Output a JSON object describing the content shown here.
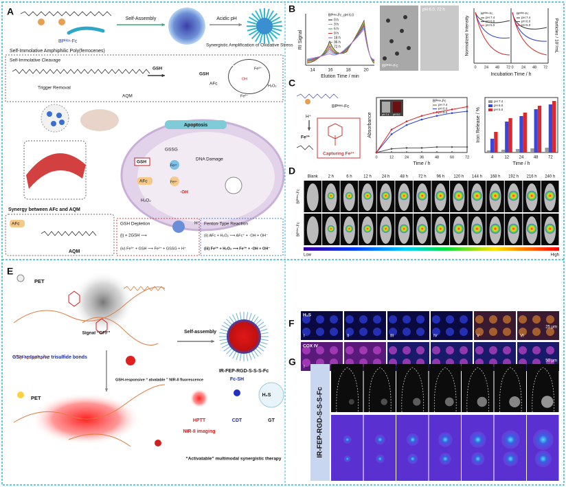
{
  "panel_labels": [
    "A",
    "B",
    "C",
    "D",
    "E",
    "F",
    "G"
  ],
  "panel_a": {
    "bp_label": "BPᴴᵉˣ-Fc",
    "self_assembly": "Self-Assembly",
    "acidic_ph": "Acidic pH",
    "polymer_title": "Self-Immolative Amphiphilic Poly(ferrocenes)",
    "synergy_title": "Synergistic Amplification of Oxidative Stress",
    "cleavage": "Self-Immolative Cleavage",
    "trigger": "Trigger Removal",
    "aqm": "AQM",
    "gsh": "GSH",
    "afc": "AFc",
    "apoptosis": "Apoptosis",
    "gssg": "GSSG",
    "dna_damage": "DNA Damage",
    "fe2": "Fe²⁺",
    "fe3": "Fe³⁺",
    "h2o2": "H₂O₂",
    "oh": "·OH",
    "h_plus": "H⁺",
    "synergy_between": "Synergy between AFc and AQM",
    "gsh_depletion": "GSH Depletion",
    "gsh_r1": "(i)  + 2GSH ⟶",
    "gsh_r4": "(iv) Fe³⁺ + GSH ⟶ Fe²⁺ + GSSG + H⁺",
    "fenton": "Fenton-Type Reaction",
    "fenton_r2": "(ii) AFc + H₂O₂ ⟶ AFc⁺ + ·OH + OH⁻",
    "fenton_r3": "(iii) Fe²⁺ + H₂O₂ ⟶ Fe³⁺ + ·OH + OH⁻"
  },
  "panel_b": {
    "ri_legend_title": "BPᴴᵉˣ-Fc, pH 6.0",
    "ri_times": [
      "0 h",
      "3 h",
      "6 h",
      "9 h",
      "18 h",
      "36 h",
      "72 h"
    ],
    "ri_ylabel": "RI Signal",
    "ri_xlabel": "Elution Time / min",
    "ri_xticks": [
      "14",
      "16",
      "18",
      "20"
    ],
    "tem_left": "BPᴴᵉˣ-Fc",
    "tem_right": "pH 6.0, 72 h",
    "int_ylabel": "Normalized Intensity",
    "int_y2label": "Particles / 10⁷/mL",
    "int_xlabel": "Incubation Time / h",
    "int_xticks": [
      "0",
      "24",
      "48",
      "72",
      "0",
      "24",
      "48",
      "72"
    ],
    "int_legend_title": "BPᴴᵉˣ-Fc",
    "int_legend": [
      "pH 7.4",
      "pH 6.0",
      "pH 5.0"
    ]
  },
  "panel_c": {
    "bp_label": "BPᴴᵉˣ-Fc",
    "h_plus": "H⁺",
    "fe3": "Fe³⁺",
    "capturing": "Capturing Fe²⁺",
    "vials": [
      "pH 7.4",
      "pH 5.0"
    ],
    "absorbance": {
      "type": "line",
      "ylabel": "Absorbance",
      "xlabel": "Time / h",
      "legend_title": "BPᴴᵉˣ-Fc",
      "x": [
        0,
        12,
        24,
        36,
        48,
        60,
        72
      ],
      "xlim": [
        0,
        72
      ],
      "xticks": [
        0,
        12,
        24,
        36,
        48,
        60,
        72
      ],
      "ylim": [
        0,
        0.6
      ],
      "series": [
        {
          "name": "pH 7.4",
          "color": "#555555",
          "values": [
            0,
            0.04,
            0.05,
            0.05,
            0.06,
            0.06,
            0.06
          ]
        },
        {
          "name": "pH 6.0",
          "color": "#2b3ed8",
          "values": [
            0,
            0.2,
            0.3,
            0.36,
            0.4,
            0.43,
            0.45
          ]
        },
        {
          "name": "pH 5.0",
          "color": "#e02020",
          "values": [
            0,
            0.25,
            0.34,
            0.4,
            0.44,
            0.47,
            0.5
          ]
        }
      ]
    },
    "iron": {
      "type": "bar",
      "ylabel": "Iron Release / %",
      "xlabel": "Time / h",
      "categories": [
        "4",
        "12",
        "24",
        "48",
        "72"
      ],
      "ylim": [
        0,
        80
      ],
      "series": [
        {
          "name": "pH 7.4",
          "color": "#9a9a9a",
          "values": [
            3,
            4,
            5,
            6,
            7
          ]
        },
        {
          "name": "pH 6.0",
          "color": "#3a47d8",
          "values": [
            20,
            45,
            53,
            63,
            70
          ]
        },
        {
          "name": "pH 5.0",
          "color": "#e02828",
          "values": [
            30,
            50,
            58,
            68,
            75
          ]
        }
      ]
    }
  },
  "panel_d": {
    "times": [
      "Blank",
      "2 h",
      "6 h",
      "12 h",
      "24 h",
      "48 h",
      "72 h",
      "96 h",
      "120 h",
      "144 h",
      "168 h",
      "192 h",
      "216 h",
      "240 h"
    ],
    "rows": [
      "BPᴴᵉˣ-Fc",
      "BPᴼᶜᵗ-Fc"
    ],
    "low": "Low",
    "high": "High"
  },
  "panel_e": {
    "pet": "PET",
    "signal_off": "Signal “OFF”",
    "trisulfide": "GSH-responsive trisulfide bonds",
    "self_assembly": "Self-assembly",
    "nir_on": "GSH-responsive “ atvatable ” NIR-II fluorescence",
    "nanoparticle": "IR-FEP-RGD-S-S-S-Fc",
    "pet_off": "PET",
    "hptt": "HPTT",
    "nir_imaging": "NIR-II imaging",
    "fc_sh": "Fc-SH",
    "cdt": "CDT",
    "h2s": "H₂S",
    "gt": "GT",
    "therapy": "“Activatable” multimodal synergistic therapy"
  },
  "panel_f": {
    "row_labels": [
      "H₂S",
      "COX IV"
    ],
    "columns": [
      "I",
      "II",
      "III",
      "IV",
      "V",
      "VI"
    ],
    "scale_top": "25 μm",
    "scale_bottom": "50 μm"
  },
  "panel_g": {
    "label": "IR-FEP-RGD-S-S-S-Fc"
  }
}
